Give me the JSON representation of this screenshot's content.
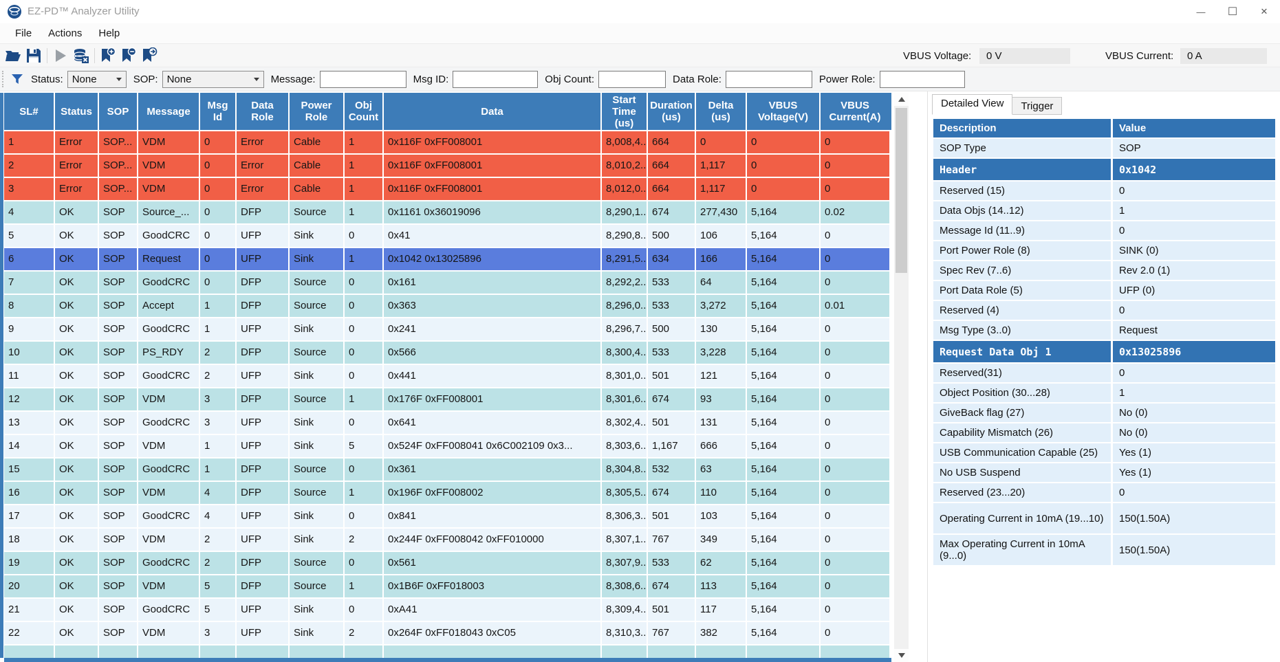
{
  "window": {
    "title": "EZ-PD™ Analyzer Utility",
    "minimize_glyph": "—",
    "maximize_glyph": "☐",
    "close_glyph": "✕"
  },
  "menu": {
    "items": [
      "File",
      "Actions",
      "Help"
    ]
  },
  "toolbar": {
    "icons": [
      "open-file-icon",
      "save-file-icon",
      "play-icon",
      "clear-database-icon",
      "bookmark-add-icon",
      "bookmark-remove-icon",
      "bookmark-goto-icon"
    ],
    "vbus_voltage_label": "VBUS Voltage:",
    "vbus_voltage_value": "0 V",
    "vbus_current_label": "VBUS Current:",
    "vbus_current_value": "0 A"
  },
  "filters": {
    "status_label": "Status:",
    "status_value": "None",
    "sop_label": "SOP:",
    "sop_value": "None",
    "message_label": "Message:",
    "message_value": "",
    "msg_id_label": "Msg ID:",
    "msg_id_value": "",
    "obj_count_label": "Obj Count:",
    "obj_count_value": "",
    "data_role_label": "Data Role:",
    "data_role_value": "",
    "power_role_label": "Power Role:",
    "power_role_value": ""
  },
  "table": {
    "columns": [
      "SL#",
      "Status",
      "SOP",
      "Message",
      "Msg\nId",
      "Data\nRole",
      "Power\nRole",
      "Obj\nCount",
      "Data",
      "Start\nTime\n(us)",
      "Duration\n(us)",
      "Delta\n(us)",
      "VBUS\nVoltage(V)",
      "VBUS\nCurrent(A)"
    ],
    "rows": [
      {
        "type": "error",
        "cells": [
          "1",
          "Error",
          "SOP...",
          "VDM",
          "0",
          "Error",
          "Cable",
          "1",
          "0x116F 0xFF008001",
          "8,008,4...",
          "664",
          "0",
          "0",
          "0"
        ]
      },
      {
        "type": "error",
        "cells": [
          "2",
          "Error",
          "SOP...",
          "VDM",
          "0",
          "Error",
          "Cable",
          "1",
          "0x116F 0xFF008001",
          "8,010,2...",
          "664",
          "1,117",
          "0",
          "0"
        ]
      },
      {
        "type": "error",
        "cells": [
          "3",
          "Error",
          "SOP...",
          "VDM",
          "0",
          "Error",
          "Cable",
          "1",
          "0x116F 0xFF008001",
          "8,012,0...",
          "664",
          "1,117",
          "0",
          "0"
        ]
      },
      {
        "type": "source",
        "cells": [
          "4",
          "OK",
          "SOP",
          "Source_...",
          "0",
          "DFP",
          "Source",
          "1",
          "0x1161 0x36019096",
          "8,290,1...",
          "674",
          "277,430",
          "5,164",
          "0.02"
        ]
      },
      {
        "type": "sink",
        "cells": [
          "5",
          "OK",
          "SOP",
          "GoodCRC",
          "0",
          "UFP",
          "Sink",
          "0",
          "0x41",
          "8,290,8...",
          "500",
          "106",
          "5,164",
          "0"
        ]
      },
      {
        "type": "selected",
        "cells": [
          "6",
          "OK",
          "SOP",
          "Request",
          "0",
          "UFP",
          "Sink",
          "1",
          "0x1042 0x13025896",
          "8,291,5...",
          "634",
          "166",
          "5,164",
          "0"
        ]
      },
      {
        "type": "source",
        "cells": [
          "7",
          "OK",
          "SOP",
          "GoodCRC",
          "0",
          "DFP",
          "Source",
          "0",
          "0x161",
          "8,292,2...",
          "533",
          "64",
          "5,164",
          "0"
        ]
      },
      {
        "type": "source",
        "cells": [
          "8",
          "OK",
          "SOP",
          "Accept",
          "1",
          "DFP",
          "Source",
          "0",
          "0x363",
          "8,296,0...",
          "533",
          "3,272",
          "5,164",
          "0.01"
        ]
      },
      {
        "type": "sink",
        "cells": [
          "9",
          "OK",
          "SOP",
          "GoodCRC",
          "1",
          "UFP",
          "Sink",
          "0",
          "0x241",
          "8,296,7...",
          "500",
          "130",
          "5,164",
          "0"
        ]
      },
      {
        "type": "source",
        "cells": [
          "10",
          "OK",
          "SOP",
          "PS_RDY",
          "2",
          "DFP",
          "Source",
          "0",
          "0x566",
          "8,300,4...",
          "533",
          "3,228",
          "5,164",
          "0"
        ]
      },
      {
        "type": "sink",
        "cells": [
          "11",
          "OK",
          "SOP",
          "GoodCRC",
          "2",
          "UFP",
          "Sink",
          "0",
          "0x441",
          "8,301,0...",
          "501",
          "121",
          "5,164",
          "0"
        ]
      },
      {
        "type": "source",
        "cells": [
          "12",
          "OK",
          "SOP",
          "VDM",
          "3",
          "DFP",
          "Source",
          "1",
          "0x176F 0xFF008001",
          "8,301,6...",
          "674",
          "93",
          "5,164",
          "0"
        ]
      },
      {
        "type": "sink",
        "cells": [
          "13",
          "OK",
          "SOP",
          "GoodCRC",
          "3",
          "UFP",
          "Sink",
          "0",
          "0x641",
          "8,302,4...",
          "501",
          "131",
          "5,164",
          "0"
        ]
      },
      {
        "type": "sink",
        "cells": [
          "14",
          "OK",
          "SOP",
          "VDM",
          "1",
          "UFP",
          "Sink",
          "5",
          "0x524F 0xFF008041 0x6C002109 0x3...",
          "8,303,6...",
          "1,167",
          "666",
          "5,164",
          "0"
        ]
      },
      {
        "type": "source",
        "cells": [
          "15",
          "OK",
          "SOP",
          "GoodCRC",
          "1",
          "DFP",
          "Source",
          "0",
          "0x361",
          "8,304,8...",
          "532",
          "63",
          "5,164",
          "0"
        ]
      },
      {
        "type": "source",
        "cells": [
          "16",
          "OK",
          "SOP",
          "VDM",
          "4",
          "DFP",
          "Source",
          "1",
          "0x196F 0xFF008002",
          "8,305,5...",
          "674",
          "110",
          "5,164",
          "0"
        ]
      },
      {
        "type": "sink",
        "cells": [
          "17",
          "OK",
          "SOP",
          "GoodCRC",
          "4",
          "UFP",
          "Sink",
          "0",
          "0x841",
          "8,306,3...",
          "501",
          "103",
          "5,164",
          "0"
        ]
      },
      {
        "type": "sink",
        "cells": [
          "18",
          "OK",
          "SOP",
          "VDM",
          "2",
          "UFP",
          "Sink",
          "2",
          "0x244F 0xFF008042 0xFF010000",
          "8,307,1...",
          "767",
          "349",
          "5,164",
          "0"
        ]
      },
      {
        "type": "source",
        "cells": [
          "19",
          "OK",
          "SOP",
          "GoodCRC",
          "2",
          "DFP",
          "Source",
          "0",
          "0x561",
          "8,307,9...",
          "533",
          "62",
          "5,164",
          "0"
        ]
      },
      {
        "type": "source",
        "cells": [
          "20",
          "OK",
          "SOP",
          "VDM",
          "5",
          "DFP",
          "Source",
          "1",
          "0x1B6F 0xFF018003",
          "8,308,6...",
          "674",
          "113",
          "5,164",
          "0"
        ]
      },
      {
        "type": "sink",
        "cells": [
          "21",
          "OK",
          "SOP",
          "GoodCRC",
          "5",
          "UFP",
          "Sink",
          "0",
          "0xA41",
          "8,309,4...",
          "501",
          "117",
          "5,164",
          "0"
        ]
      },
      {
        "type": "sink",
        "cells": [
          "22",
          "OK",
          "SOP",
          "VDM",
          "3",
          "UFP",
          "Sink",
          "2",
          "0x264F 0xFF018043 0xC05",
          "8,310,3...",
          "767",
          "382",
          "5,164",
          "0"
        ]
      }
    ]
  },
  "detail_panel": {
    "tabs": [
      {
        "label": "Detailed View",
        "active": true
      },
      {
        "label": "Trigger",
        "active": false
      }
    ],
    "columns": [
      "Description",
      "Value"
    ],
    "rows": [
      {
        "description": "SOP Type",
        "value": "SOP"
      },
      {
        "description": "Header",
        "value": "0x1042",
        "highlight": true
      },
      {
        "description": "Reserved (15)",
        "value": "0"
      },
      {
        "description": "Data Objs (14..12)",
        "value": "1"
      },
      {
        "description": "Message Id (11..9)",
        "value": "0"
      },
      {
        "description": "Port Power Role (8)",
        "value": "SINK (0)"
      },
      {
        "description": "Spec Rev (7..6)",
        "value": "Rev 2.0 (1)"
      },
      {
        "description": "Port Data Role (5)",
        "value": "UFP (0)"
      },
      {
        "description": "Reserved (4)",
        "value": "0"
      },
      {
        "description": "Msg Type (3..0)",
        "value": "Request"
      },
      {
        "description": "Request Data Obj 1",
        "value": "0x13025896",
        "highlight": true
      },
      {
        "description": "Reserved(31)",
        "value": "0"
      },
      {
        "description": "Object Position (30...28)",
        "value": "1"
      },
      {
        "description": "GiveBack flag (27)",
        "value": "No (0)"
      },
      {
        "description": "Capability Mismatch (26)",
        "value": "No (0)"
      },
      {
        "description": "USB Communication Capable (25)",
        "value": "Yes (1)"
      },
      {
        "description": "No USB Suspend",
        "value": "Yes (1)"
      },
      {
        "description": "Reserved (23...20)",
        "value": "0"
      },
      {
        "description": "Operating Current in 10mA (19...10)",
        "value": "150(1.50A)",
        "tall": true
      },
      {
        "description": "Max Operating Current in 10mA (9...0)",
        "value": "150(1.50A)",
        "tall": true
      }
    ]
  }
}
